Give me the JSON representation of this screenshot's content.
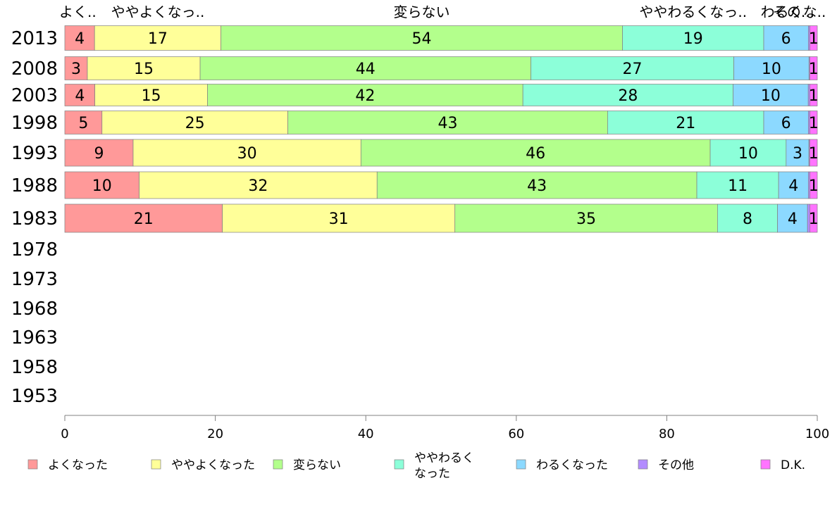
{
  "chart_data": {
    "type": "bar",
    "orientation": "horizontal",
    "stacked": true,
    "percent": true,
    "categories": [
      "2013",
      "2008",
      "2003",
      "1998",
      "1993",
      "1988",
      "1983",
      "1978",
      "1973",
      "1968",
      "1963",
      "1958",
      "1953"
    ],
    "series": [
      {
        "name": "よくなった",
        "color": "#ff9999",
        "values": [
          4,
          3,
          4,
          5,
          9,
          10,
          21,
          null,
          null,
          null,
          null,
          null,
          null
        ]
      },
      {
        "name": "ややよくなった",
        "color": "#ffff99",
        "values": [
          17,
          15,
          15,
          25,
          30,
          32,
          31,
          null,
          null,
          null,
          null,
          null,
          null
        ]
      },
      {
        "name": "変らない",
        "color": "#b3ff8c",
        "values": [
          54,
          44,
          42,
          43,
          46,
          43,
          35,
          null,
          null,
          null,
          null,
          null,
          null
        ]
      },
      {
        "name": "ややわるくなった",
        "color": "#8cffd9",
        "values": [
          19,
          27,
          28,
          21,
          10,
          11,
          8,
          null,
          null,
          null,
          null,
          null,
          null
        ]
      },
      {
        "name": "わるくなった",
        "color": "#8cd9ff",
        "values": [
          6,
          10,
          10,
          6,
          3,
          4,
          4,
          null,
          null,
          null,
          null,
          null,
          null
        ]
      },
      {
        "name": "その他",
        "color": "#b38cff",
        "values": [
          0.2,
          0.1,
          0.2,
          0.2,
          0.1,
          0.2,
          0.3,
          null,
          null,
          null,
          null,
          null,
          null
        ]
      },
      {
        "name": "D.K.",
        "color": "#ff73ff",
        "values": [
          1,
          1,
          1,
          1,
          1,
          1,
          1,
          null,
          null,
          null,
          null,
          null,
          null
        ]
      }
    ],
    "top_labels": [
      "よく..",
      "ややよくなっ..",
      "変らない",
      "ややわるくなっ..",
      "わるくな..",
      "その..."
    ],
    "xlim": [
      0,
      100
    ],
    "xticks": [
      0,
      20,
      40,
      60,
      80,
      100
    ],
    "legend": {
      "placement": "bottom",
      "entries": [
        "よくなった",
        "ややよくなった",
        "変らない",
        "ややわるく\nなった",
        "わるくなった",
        "その他",
        "D.K."
      ]
    }
  }
}
